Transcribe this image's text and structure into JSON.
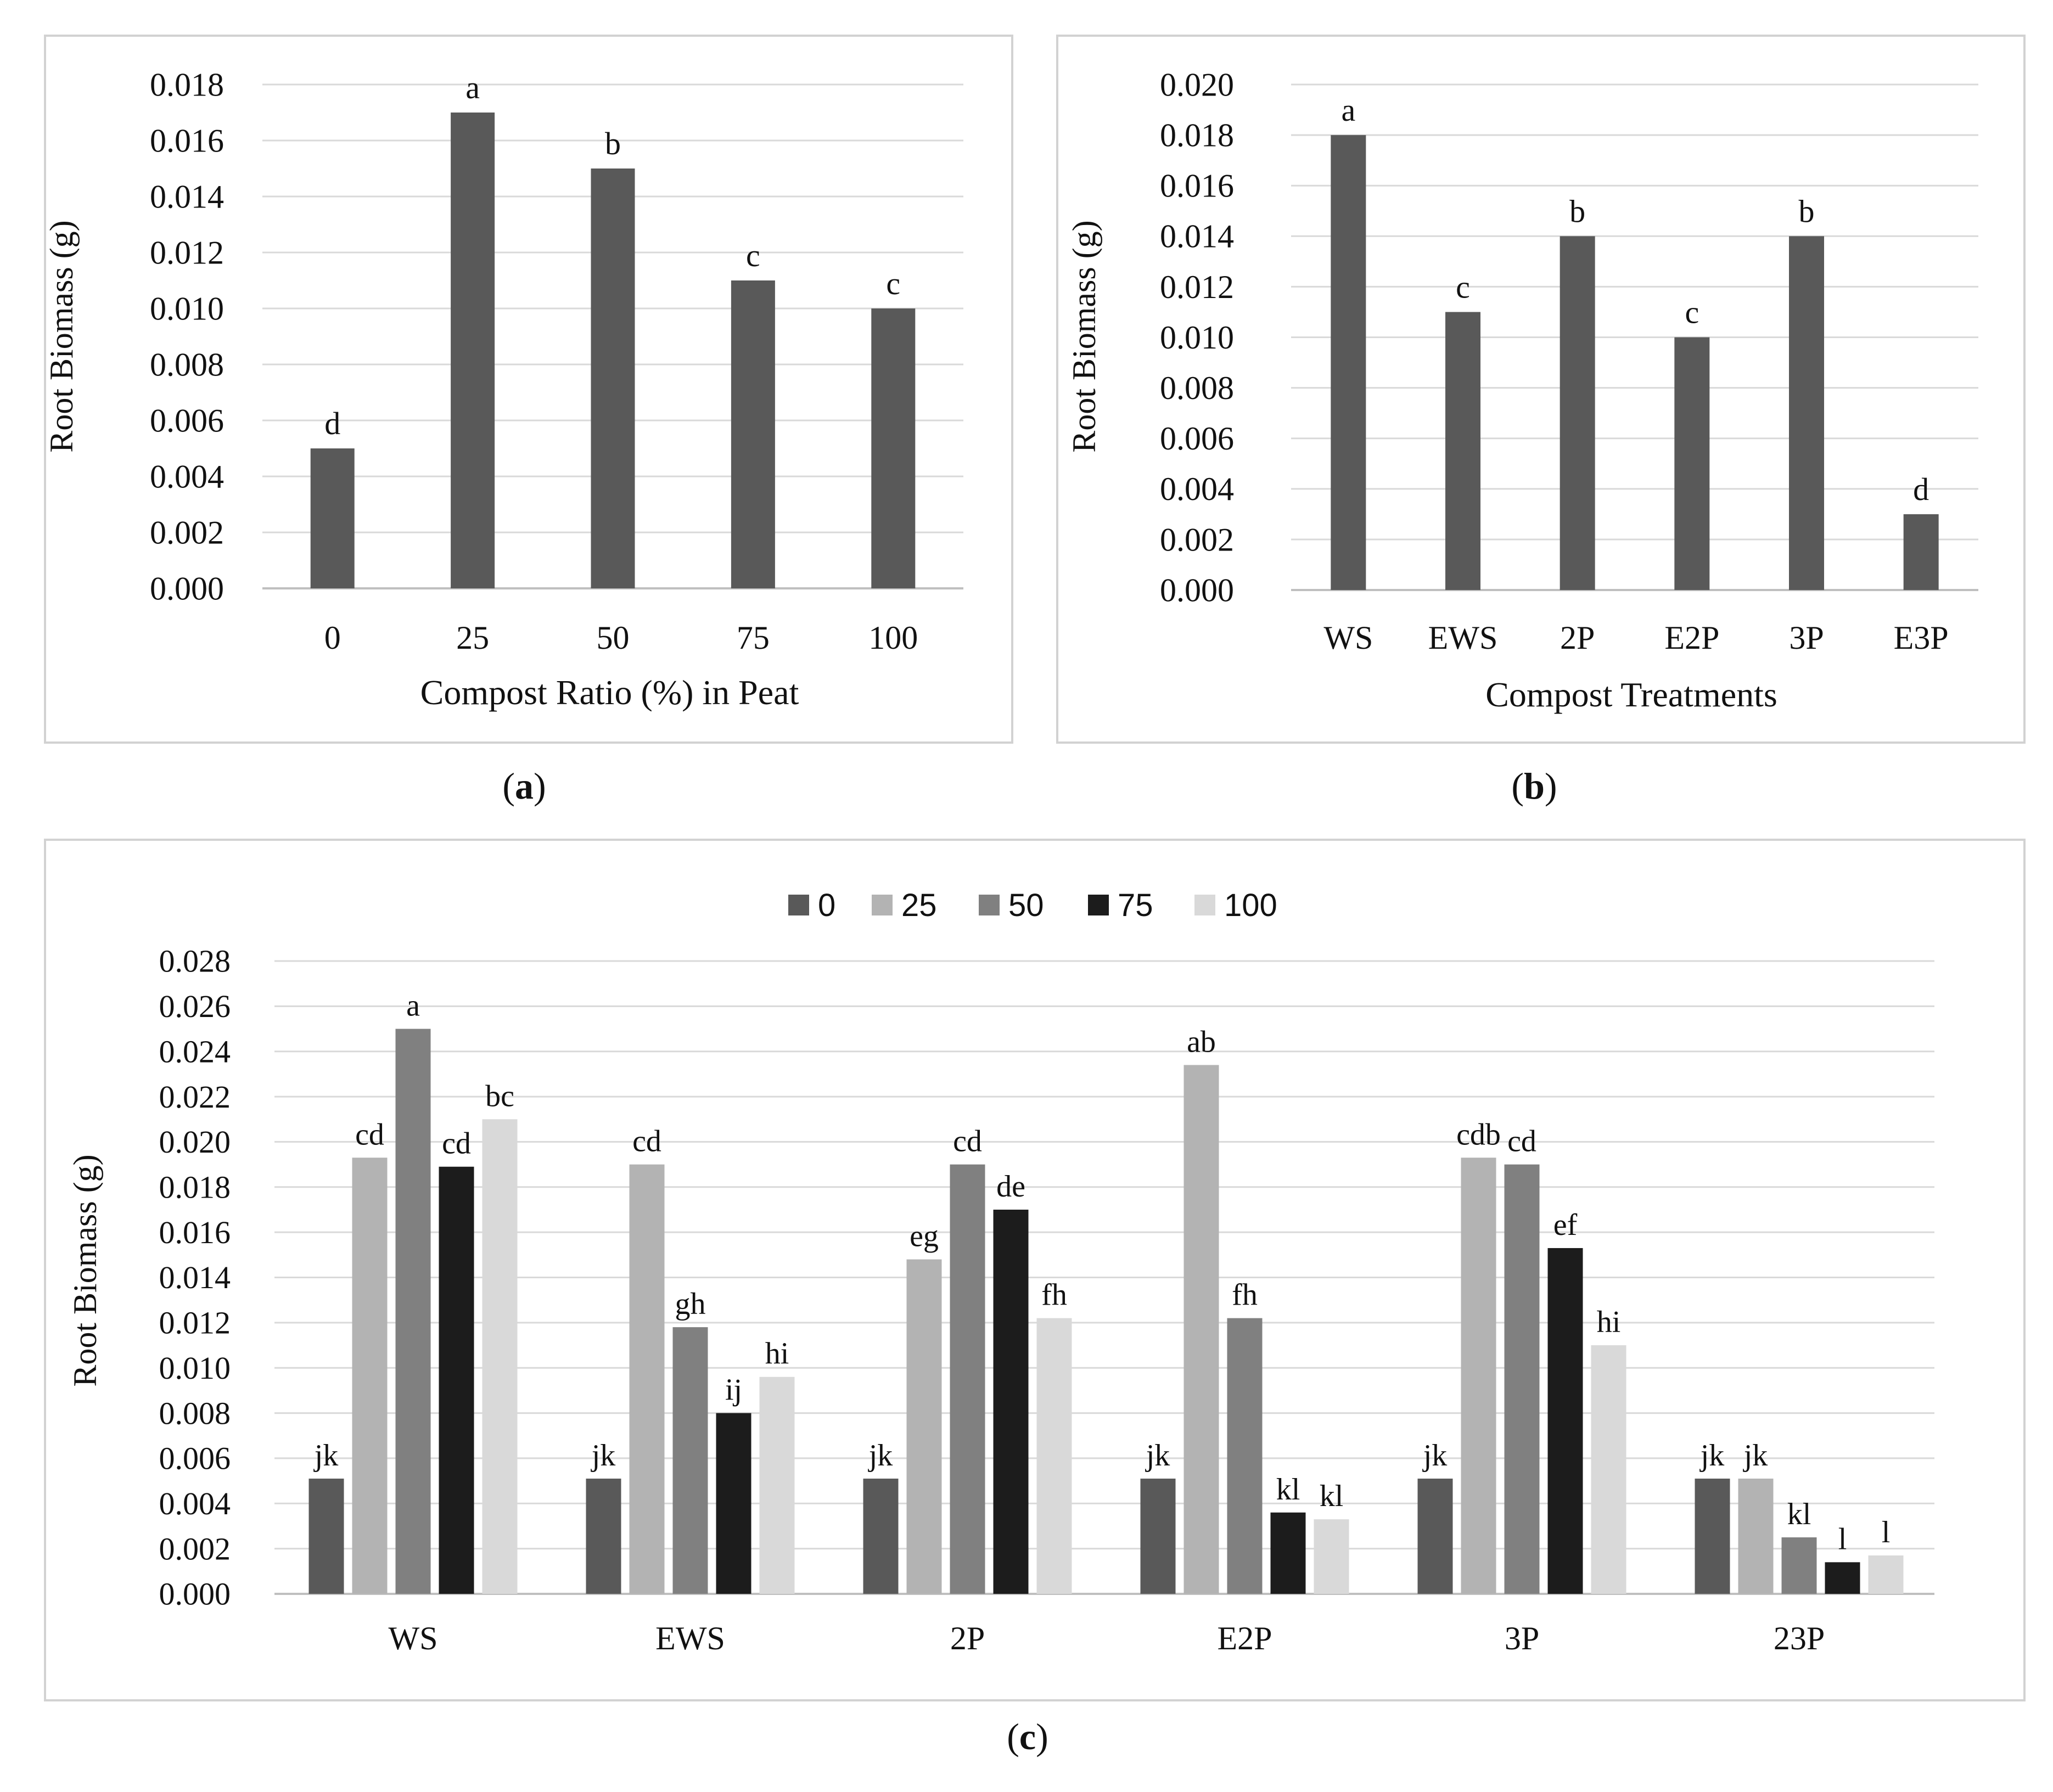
{
  "colors": {
    "frame": "#d2d2d2",
    "grid": "#d9d9d9",
    "axis": "#bfbfbf",
    "bar_single": "#595959",
    "series": [
      "#595959",
      "#b3b3b3",
      "#808080",
      "#1c1c1c",
      "#d9d9d9"
    ]
  },
  "chart_data": [
    {
      "id": "a",
      "type": "bar",
      "panel_caption": "(a)",
      "panel_letter": "a",
      "xlabel": "Compost Ratio (%) in Peat",
      "ylabel": "Root Biomass (g)",
      "ylim": [
        0,
        0.018
      ],
      "ytick_step": 0.002,
      "yticks": [
        "0.000",
        "0.002",
        "0.004",
        "0.006",
        "0.008",
        "0.010",
        "0.012",
        "0.014",
        "0.016",
        "0.018"
      ],
      "categories": [
        "0",
        "25",
        "50",
        "75",
        "100"
      ],
      "values": [
        0.005,
        0.017,
        0.015,
        0.011,
        0.01
      ],
      "labels": [
        "d",
        "a",
        "b",
        "c",
        "c"
      ],
      "grid": true
    },
    {
      "id": "b",
      "type": "bar",
      "panel_caption": "(b)",
      "panel_letter": "b",
      "xlabel": "Compost Treatments",
      "ylabel": "Root Biomass (g)",
      "ylim": [
        0,
        0.02
      ],
      "ytick_step": 0.002,
      "yticks": [
        "0.000",
        "0.002",
        "0.004",
        "0.006",
        "0.008",
        "0.010",
        "0.012",
        "0.014",
        "0.016",
        "0.018",
        "0.020"
      ],
      "categories": [
        "WS",
        "EWS",
        "2P",
        "E2P",
        "3P",
        "E3P"
      ],
      "values": [
        0.018,
        0.011,
        0.014,
        0.01,
        0.014,
        0.003
      ],
      "labels": [
        "a",
        "c",
        "b",
        "c",
        "b",
        "d"
      ],
      "grid": true
    },
    {
      "id": "c",
      "type": "bar",
      "panel_caption": "(c)",
      "panel_letter": "c",
      "xlabel": "",
      "ylabel": "Root Biomass (g)",
      "ylim": [
        0,
        0.028
      ],
      "ytick_step": 0.002,
      "yticks": [
        "0.000",
        "0.002",
        "0.004",
        "0.006",
        "0.008",
        "0.010",
        "0.012",
        "0.014",
        "0.016",
        "0.018",
        "0.020",
        "0.022",
        "0.024",
        "0.026",
        "0.028"
      ],
      "categories": [
        "WS",
        "EWS",
        "2P",
        "E2P",
        "3P",
        "23P"
      ],
      "legend_position": "top-center",
      "grid": true,
      "series": [
        {
          "name": "0",
          "values": [
            0.0051,
            0.0051,
            0.0051,
            0.0051,
            0.0051,
            0.0051
          ],
          "labels": [
            "jk",
            "jk",
            "jk",
            "jk",
            "jk",
            "jk"
          ]
        },
        {
          "name": "25",
          "values": [
            0.0193,
            0.019,
            0.0148,
            0.0234,
            0.0193,
            0.0051
          ],
          "labels": [
            "cd",
            "cd",
            "eg",
            "ab",
            "cdb",
            "jk"
          ]
        },
        {
          "name": "50",
          "values": [
            0.025,
            0.0118,
            0.019,
            0.0122,
            0.019,
            0.0025
          ],
          "labels": [
            "a",
            "gh",
            "cd",
            "fh",
            "cd",
            "kl"
          ]
        },
        {
          "name": "75",
          "values": [
            0.0189,
            0.008,
            0.017,
            0.0036,
            0.0153,
            0.0014
          ],
          "labels": [
            "cd",
            "ij",
            "de",
            "kl",
            "ef",
            "l"
          ]
        },
        {
          "name": "100",
          "values": [
            0.021,
            0.0096,
            0.0122,
            0.0033,
            0.011,
            0.0017
          ],
          "labels": [
            "bc",
            "hi",
            "fh",
            "kl",
            "hi",
            "l"
          ]
        }
      ]
    }
  ]
}
